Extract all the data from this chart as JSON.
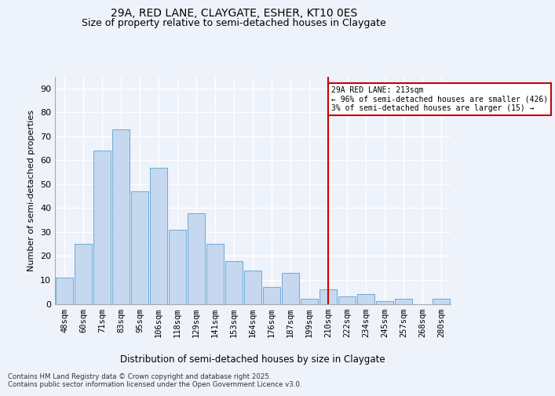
{
  "title1": "29A, RED LANE, CLAYGATE, ESHER, KT10 0ES",
  "title2": "Size of property relative to semi-detached houses in Claygate",
  "xlabel": "Distribution of semi-detached houses by size in Claygate",
  "ylabel": "Number of semi-detached properties",
  "categories": [
    "48sqm",
    "60sqm",
    "71sqm",
    "83sqm",
    "95sqm",
    "106sqm",
    "118sqm",
    "129sqm",
    "141sqm",
    "153sqm",
    "164sqm",
    "176sqm",
    "187sqm",
    "199sqm",
    "210sqm",
    "222sqm",
    "234sqm",
    "245sqm",
    "257sqm",
    "268sqm",
    "280sqm"
  ],
  "values": [
    11,
    25,
    64,
    73,
    47,
    57,
    31,
    38,
    25,
    18,
    14,
    7,
    13,
    2,
    6,
    3,
    4,
    1,
    2,
    0,
    2
  ],
  "bar_color": "#c5d8f0",
  "bar_edge_color": "#6aaad4",
  "vline_index": 14,
  "annotation_line1": "29A RED LANE: 213sqm",
  "annotation_line2": "← 96% of semi-detached houses are smaller (426)",
  "annotation_line3": "3% of semi-detached houses are larger (15) →",
  "annotation_box_color": "#ffffff",
  "annotation_box_edge": "#cc0000",
  "vline_color": "#cc0000",
  "ylim": [
    0,
    95
  ],
  "yticks": [
    0,
    10,
    20,
    30,
    40,
    50,
    60,
    70,
    80,
    90
  ],
  "footnote1": "Contains HM Land Registry data © Crown copyright and database right 2025.",
  "footnote2": "Contains public sector information licensed under the Open Government Licence v3.0.",
  "bg_color": "#eef2fa",
  "grid_color": "#ffffff",
  "title1_fontsize": 10,
  "title2_fontsize": 9
}
